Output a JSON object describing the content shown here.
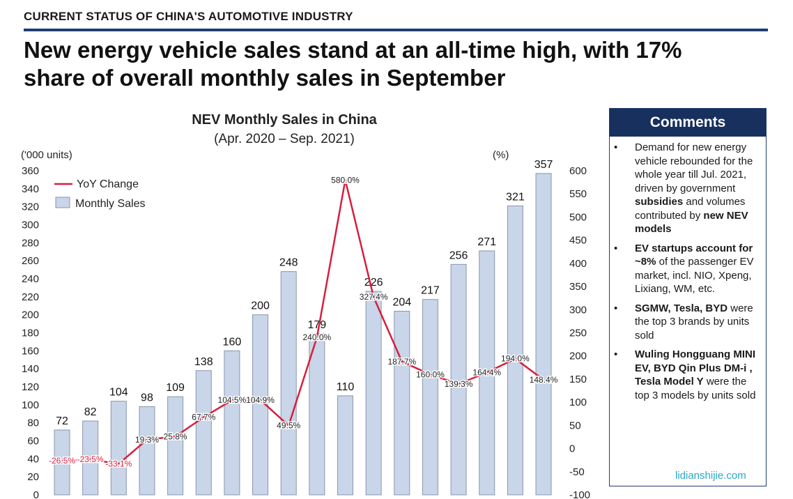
{
  "header": {
    "section_title": "CURRENT STATUS OF CHINA'S AUTOMOTIVE INDUSTRY",
    "headline_line1": "New energy vehicle sales stand at an all-time high, with 17%",
    "headline_line2": "share of overall monthly sales in September"
  },
  "chart_data": {
    "type": "bar",
    "title": "NEV Monthly Sales in China",
    "subtitle": "(Apr. 2020 – Sep. 2021)",
    "ylabel_left": "('000 units)",
    "ylabel_right": "(%)",
    "ylim_left": [
      0,
      360
    ],
    "ytick_step_left": 20,
    "ylim_right": [
      -100,
      600
    ],
    "ytick_step_right": 50,
    "grid": false,
    "legend_position": "top-left",
    "colors": {
      "bar_fill": "#c9d5e8",
      "bar_stroke": "#8896ae",
      "line": "#d81e3c"
    },
    "series": [
      {
        "name": "Monthly Sales",
        "type": "bar",
        "axis": "left",
        "values": [
          72,
          82,
          104,
          98,
          109,
          138,
          160,
          200,
          248,
          179,
          110,
          226,
          204,
          217,
          256,
          271,
          321,
          357
        ],
        "labels": [
          "72",
          "82",
          "104",
          "98",
          "109",
          "138",
          "160",
          "200",
          "248",
          "179",
          "110",
          "226",
          "204",
          "217",
          "256",
          "271",
          "321",
          "357"
        ]
      },
      {
        "name": "YoY Change",
        "type": "line",
        "axis": "right",
        "values": [
          -26.5,
          -23.5,
          -33.1,
          19.3,
          25.8,
          67.7,
          104.5,
          104.9,
          49.5,
          240.0,
          580.0,
          327.4,
          187.7,
          160.0,
          139.3,
          164.4,
          194.0,
          148.4
        ],
        "labels": [
          "-26.5%",
          "-23.5%",
          "-33.1%",
          "19.3%",
          "25.8%",
          "67.7%",
          "104.5%",
          "104.9%",
          "49.5%",
          "240.0%",
          "580.0%",
          "327.4%",
          "187.7%",
          "160.0%",
          "139.3%",
          "164.4%",
          "194.0%",
          "148.4%"
        ]
      }
    ]
  },
  "comments": {
    "title": "Comments",
    "items": [
      {
        "bullet": "•",
        "parts": [
          {
            "text": "Demand for new energy vehicle rebounded for the whole year till Jul. 2021, driven by government ",
            "bold": false
          },
          {
            "text": "subsidies",
            "bold": true
          },
          {
            "text": " and volumes contributed by ",
            "bold": false
          },
          {
            "text": "new NEV models",
            "bold": true
          }
        ]
      },
      {
        "bullet": "•",
        "parts": [
          {
            "text": "EV startups account for ~8%",
            "bold": true
          },
          {
            "text": " of the passenger EV market, incl. NIO, Xpeng, Lixiang, WM, etc.",
            "bold": false
          }
        ]
      },
      {
        "bullet": "•",
        "parts": [
          {
            "text": "SGMW, Tesla, BYD",
            "bold": true
          },
          {
            "text": " were the top 3 brands by units sold",
            "bold": false
          }
        ]
      },
      {
        "bullet": "•",
        "parts": [
          {
            "text": "Wuling Hongguang MINI EV, BYD Qin Plus DM-i , Tesla Model Y",
            "bold": true
          },
          {
            "text": " were the top 3 models by units sold",
            "bold": false
          }
        ]
      }
    ]
  },
  "watermark": "lidianshijie.com"
}
